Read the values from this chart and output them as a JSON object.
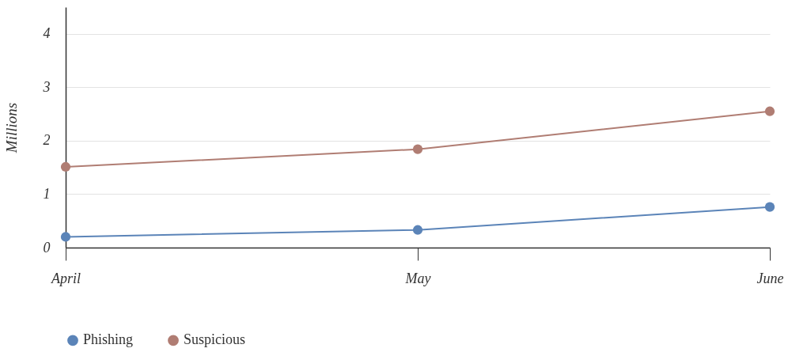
{
  "chart_data": {
    "type": "line",
    "ylabel": "Millions",
    "categories": [
      "April",
      "May",
      "June"
    ],
    "series": [
      {
        "name": "Phishing",
        "color": "#5b84b8",
        "values": [
          0.2,
          0.33,
          0.76
        ]
      },
      {
        "name": "Suspicious",
        "color": "#b07d73",
        "values": [
          1.51,
          1.84,
          2.55
        ]
      }
    ],
    "ylim": [
      0,
      4.5
    ],
    "yticks": [
      0,
      1,
      2,
      3,
      4
    ],
    "grid": "y",
    "legend": "bottom",
    "marker": "circle",
    "line_style": "solid"
  }
}
